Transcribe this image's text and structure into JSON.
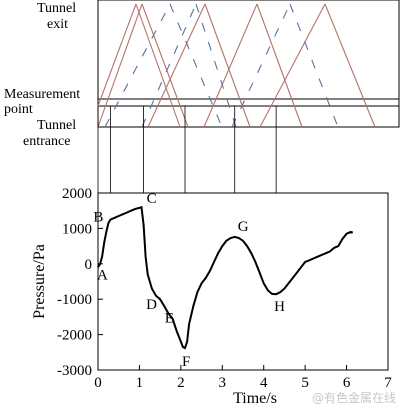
{
  "colors": {
    "exit_waves": "#b5736b",
    "reflected_waves": "#5a6fa0",
    "curve": "#000000",
    "watermark": "#c8c8c8"
  },
  "diagram": {
    "labels": {
      "tunnel_exit": [
        "Tunnel",
        "exit"
      ],
      "measurement_point": [
        "Measurement",
        "point"
      ],
      "tunnel_entrance": [
        "Tunnel",
        "entrance"
      ]
    }
  },
  "chart_data": {
    "type": "line",
    "xlabel": "Time/s",
    "ylabel": "Pressure/Pa",
    "xlim": [
      0,
      7
    ],
    "ylim": [
      -3000,
      2000
    ],
    "xticks": [
      0,
      1,
      2,
      3,
      4,
      5,
      6,
      7
    ],
    "yticks": [
      2000,
      1000,
      0,
      -1000,
      -2000,
      -3000
    ],
    "series": [
      {
        "x": [
          0.0,
          0.05,
          0.1,
          0.15,
          0.2,
          0.25,
          0.3,
          0.4,
          0.5,
          0.6,
          0.7,
          0.8,
          0.9,
          1.0,
          1.05,
          1.1,
          1.15,
          1.2,
          1.3,
          1.4,
          1.5,
          1.6,
          1.7,
          1.8,
          1.9,
          2.0,
          2.05,
          2.1,
          2.15,
          2.2,
          2.3,
          2.4,
          2.5,
          2.6,
          2.7,
          2.8,
          2.9,
          3.0,
          3.1,
          3.2,
          3.3,
          3.4,
          3.5,
          3.6,
          3.7,
          3.8,
          3.9,
          4.0,
          4.1,
          4.2,
          4.3,
          4.4,
          4.5,
          4.6,
          4.7,
          4.8,
          4.9,
          5.0,
          5.1,
          5.2,
          5.3,
          5.4,
          5.5,
          5.6,
          5.7,
          5.8,
          5.9,
          6.0,
          6.1,
          6.15
        ],
        "y": [
          -100,
          0,
          200,
          600,
          900,
          1150,
          1250,
          1300,
          1350,
          1400,
          1450,
          1500,
          1550,
          1580,
          1600,
          1100,
          200,
          -300,
          -700,
          -900,
          -1000,
          -1200,
          -1400,
          -1550,
          -1900,
          -2200,
          -2350,
          -2380,
          -2200,
          -1700,
          -1200,
          -800,
          -550,
          -400,
          -200,
          50,
          300,
          500,
          650,
          730,
          760,
          730,
          650,
          500,
          300,
          50,
          -250,
          -550,
          -750,
          -850,
          -860,
          -800,
          -700,
          -550,
          -400,
          -250,
          -100,
          50,
          100,
          150,
          200,
          250,
          300,
          350,
          450,
          500,
          700,
          850,
          900,
          880
        ]
      }
    ],
    "annotations": [
      {
        "text": "A",
        "x": 0.0,
        "y": -100
      },
      {
        "text": "B",
        "x": 0.3,
        "y": 1250
      },
      {
        "text": "C",
        "x": 1.1,
        "y": 1600
      },
      {
        "text": "D",
        "x": 1.5,
        "y": -1000
      },
      {
        "text": "E",
        "x": 1.9,
        "y": -1550
      },
      {
        "text": "F",
        "x": 2.1,
        "y": -2380
      },
      {
        "text": "G",
        "x": 3.3,
        "y": 760
      },
      {
        "text": "H",
        "x": 4.3,
        "y": -860
      }
    ],
    "grid": false,
    "legend": "none"
  },
  "watermark": "@有色金属在线"
}
